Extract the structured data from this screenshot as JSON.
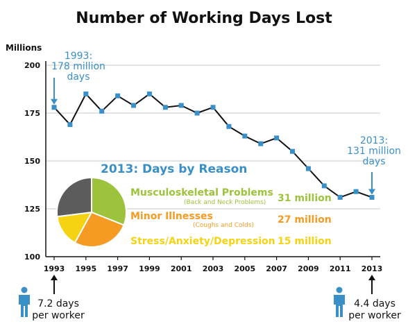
{
  "title": "Number of Working Days Lost",
  "units_label": "Millions",
  "colors": {
    "accent": "#3a8fc6",
    "line": "#111111",
    "marker": "#3a8fc6",
    "musculoskeletal": "#9dc23b",
    "minor": "#f59a23",
    "stress": "#f5d312",
    "other": "#5c5c5c"
  },
  "annotations": {
    "start": [
      "1993:",
      "178 million",
      "days"
    ],
    "end": [
      "2013:",
      "131 million",
      "days"
    ]
  },
  "workers": {
    "start": [
      "7.2 days",
      "per worker"
    ],
    "end": [
      "4.4 days",
      "per worker"
    ],
    "icon": "person-icon"
  },
  "pie": {
    "title": "2013: Days by Reason",
    "reasons": [
      {
        "label": "Musculoskeletal Problems",
        "sublabel": "(Back and Neck Problems)",
        "value_label": "31 million",
        "color": "#9dc23b"
      },
      {
        "label": "Minor Illnesses",
        "sublabel": "(Coughs and Colds)",
        "value_label": "27 million",
        "color": "#f59a23"
      },
      {
        "label": "Stress/Anxiety/Depression",
        "sublabel": "",
        "value_label": "15 million",
        "color": "#f5d312"
      }
    ]
  },
  "chart_data": [
    {
      "type": "line",
      "title": "Number of Working Days Lost",
      "ylabel": "Millions",
      "x": [
        1993,
        1994,
        1995,
        1996,
        1997,
        1998,
        1999,
        2000,
        2001,
        2002,
        2003,
        2004,
        2005,
        2006,
        2007,
        2008,
        2009,
        2010,
        2011,
        2012,
        2013
      ],
      "y": [
        178,
        169,
        185,
        176,
        184,
        179,
        185,
        178,
        179,
        175,
        178,
        168,
        163,
        159,
        162,
        155,
        146,
        137,
        131,
        134,
        131
      ],
      "xticks": [
        "1993",
        "1995",
        "1997",
        "1999",
        "2001",
        "2003",
        "2005",
        "2007",
        "2009",
        "2011",
        "2013"
      ],
      "yticks": [
        "100",
        "125",
        "150",
        "175",
        "200"
      ],
      "ylim": [
        100,
        200
      ],
      "xlim": [
        1993,
        2013
      ],
      "grid": "horizontal"
    },
    {
      "type": "pie",
      "title": "2013: Days by Reason",
      "labels": [
        "Musculoskeletal Problems",
        "Minor Illnesses",
        "Stress/Anxiety/Depression"
      ],
      "values": [
        31,
        27,
        15
      ],
      "units": "million",
      "remainder_unlabeled": true
    }
  ]
}
